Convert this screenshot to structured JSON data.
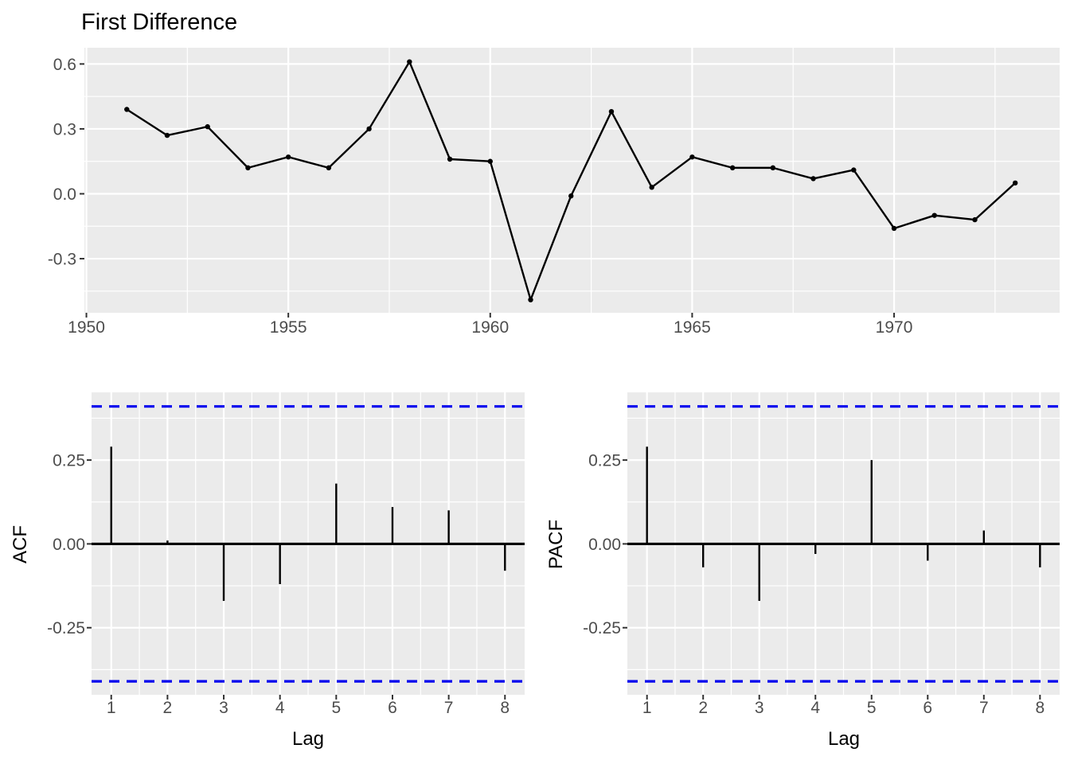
{
  "figure": {
    "background": "#ffffff",
    "title": "First Difference"
  },
  "colors": {
    "panel_bg": "#EBEBEB",
    "grid": "#FFFFFF",
    "series": "#000000",
    "zero_line": "#000000",
    "ci_line": "#0000EE",
    "tick_label": "#4D4D4D",
    "tick_mark": "#333333",
    "axis_title": "#000000",
    "title": "#000000"
  },
  "chart_data": [
    {
      "id": "first_difference",
      "type": "line",
      "title": "First Difference",
      "xlabel": "",
      "ylabel": "",
      "x": [
        1951,
        1952,
        1953,
        1954,
        1955,
        1956,
        1957,
        1958,
        1959,
        1960,
        1961,
        1962,
        1963,
        1964,
        1965,
        1966,
        1967,
        1968,
        1969,
        1970,
        1971,
        1972,
        1973
      ],
      "y": [
        0.39,
        0.27,
        0.31,
        0.12,
        0.17,
        0.12,
        0.3,
        0.61,
        0.16,
        0.15,
        -0.49,
        -0.01,
        0.38,
        0.03,
        0.17,
        0.12,
        0.12,
        0.07,
        0.11,
        -0.16,
        -0.1,
        -0.12,
        0.05
      ],
      "xlim": [
        1949.95,
        1974.1
      ],
      "ylim": [
        -0.55,
        0.675
      ],
      "x_ticks": [
        1950,
        1955,
        1960,
        1965,
        1970
      ],
      "x_tick_labels": [
        "1950",
        "1955",
        "1960",
        "1965",
        "1970"
      ],
      "x_minor": [
        1952.5,
        1957.5,
        1962.5,
        1967.5,
        1972.5
      ],
      "y_ticks": [
        0.6,
        0.3,
        0.0,
        -0.3
      ],
      "y_tick_labels": [
        "0.6",
        "0.3",
        "0.0",
        "-0.3"
      ],
      "y_minor": [
        0.45,
        0.15,
        -0.15,
        -0.45
      ],
      "grid": true,
      "point_markers": true
    },
    {
      "id": "acf",
      "type": "bar",
      "title": "",
      "xlabel": "Lag",
      "ylabel": "ACF",
      "categories": [
        1,
        2,
        3,
        4,
        5,
        6,
        7,
        8
      ],
      "values": [
        0.29,
        0.01,
        -0.17,
        -0.12,
        0.18,
        0.11,
        0.1,
        -0.08
      ],
      "conf_bound": 0.41,
      "xlim": [
        0.65,
        8.35
      ],
      "ylim": [
        -0.45,
        0.452
      ],
      "x_ticks": [
        1,
        2,
        3,
        4,
        5,
        6,
        7,
        8
      ],
      "x_tick_labels": [
        "1",
        "2",
        "3",
        "4",
        "5",
        "6",
        "7",
        "8"
      ],
      "x_minor": [
        1.5,
        2.5,
        3.5,
        4.5,
        5.5,
        6.5,
        7.5
      ],
      "y_ticks": [
        0.25,
        0.0,
        -0.25
      ],
      "y_tick_labels": [
        "0.25",
        "0.00",
        "-0.25"
      ],
      "y_minor": [
        0.375,
        0.125,
        -0.125,
        -0.375
      ],
      "grid": true
    },
    {
      "id": "pacf",
      "type": "bar",
      "title": "",
      "xlabel": "Lag",
      "ylabel": "PACF",
      "categories": [
        1,
        2,
        3,
        4,
        5,
        6,
        7,
        8
      ],
      "values": [
        0.29,
        -0.07,
        -0.17,
        -0.03,
        0.25,
        -0.05,
        0.04,
        -0.07
      ],
      "conf_bound": 0.41,
      "xlim": [
        0.65,
        8.35
      ],
      "ylim": [
        -0.45,
        0.452
      ],
      "x_ticks": [
        1,
        2,
        3,
        4,
        5,
        6,
        7,
        8
      ],
      "x_tick_labels": [
        "1",
        "2",
        "3",
        "4",
        "5",
        "6",
        "7",
        "8"
      ],
      "x_minor": [
        1.5,
        2.5,
        3.5,
        4.5,
        5.5,
        6.5,
        7.5
      ],
      "y_ticks": [
        0.25,
        0.0,
        -0.25
      ],
      "y_tick_labels": [
        "0.25",
        "0.00",
        "-0.25"
      ],
      "y_minor": [
        0.375,
        0.125,
        -0.125,
        -0.375
      ],
      "grid": true
    }
  ]
}
